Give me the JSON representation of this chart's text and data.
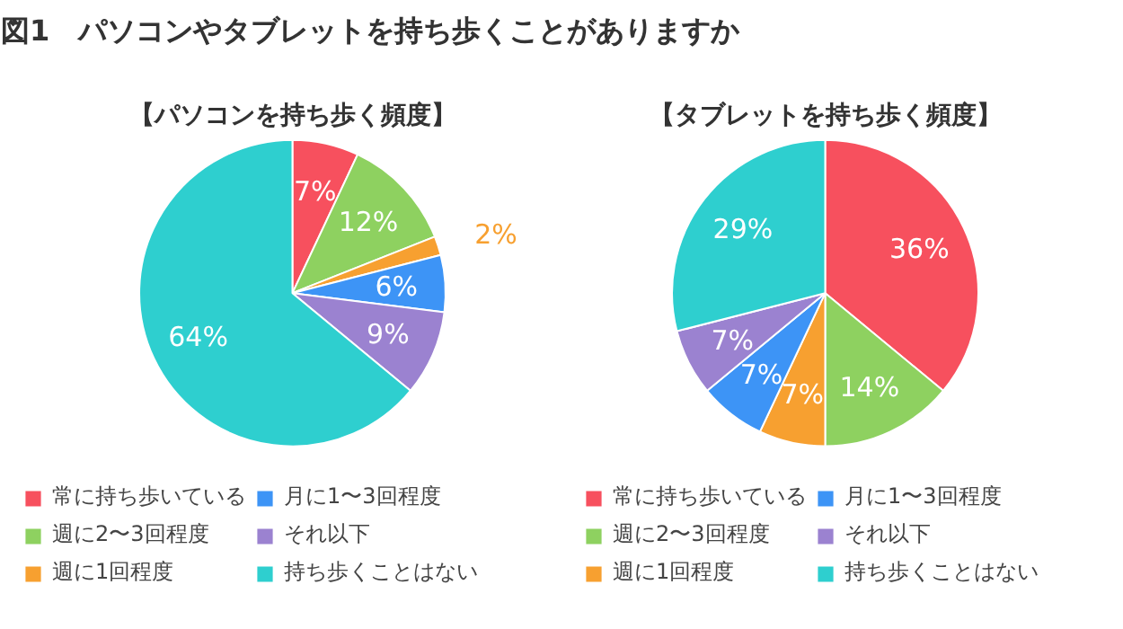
{
  "chart_data": [
    {
      "type": "pie",
      "title": "図1　パソコンやタブレットを持ち歩くことがありますか",
      "subtitle": "【パソコンを持ち歩く頻度】",
      "categories": [
        "常に持ち歩いている",
        "週に2〜3回程度",
        "週に1回程度",
        "月に1〜3回程度",
        "それ以下",
        "持ち歩くことはない"
      ],
      "values": [
        7,
        12,
        2,
        6,
        9,
        64
      ],
      "value_labels": [
        "7%",
        "12%",
        "2%",
        "6%",
        "9%",
        "64%"
      ],
      "colors": [
        "#f7505e",
        "#8ed160",
        "#f7a030",
        "#3d94f6",
        "#9b82d0",
        "#2ecfcf"
      ],
      "legend": "bottom"
    },
    {
      "type": "pie",
      "subtitle": "【タブレットを持ち歩く頻度】",
      "categories": [
        "常に持ち歩いている",
        "週に2〜3回程度",
        "週に1回程度",
        "月に1〜3回程度",
        "それ以下",
        "持ち歩くことはない"
      ],
      "values": [
        36,
        14,
        7,
        7,
        7,
        29
      ],
      "value_labels": [
        "36%",
        "14%",
        "7%",
        "7%",
        "7%",
        "29%"
      ],
      "colors": [
        "#f7505e",
        "#8ed160",
        "#f7a030",
        "#3d94f6",
        "#9b82d0",
        "#2ecfcf"
      ],
      "legend": "bottom"
    }
  ]
}
